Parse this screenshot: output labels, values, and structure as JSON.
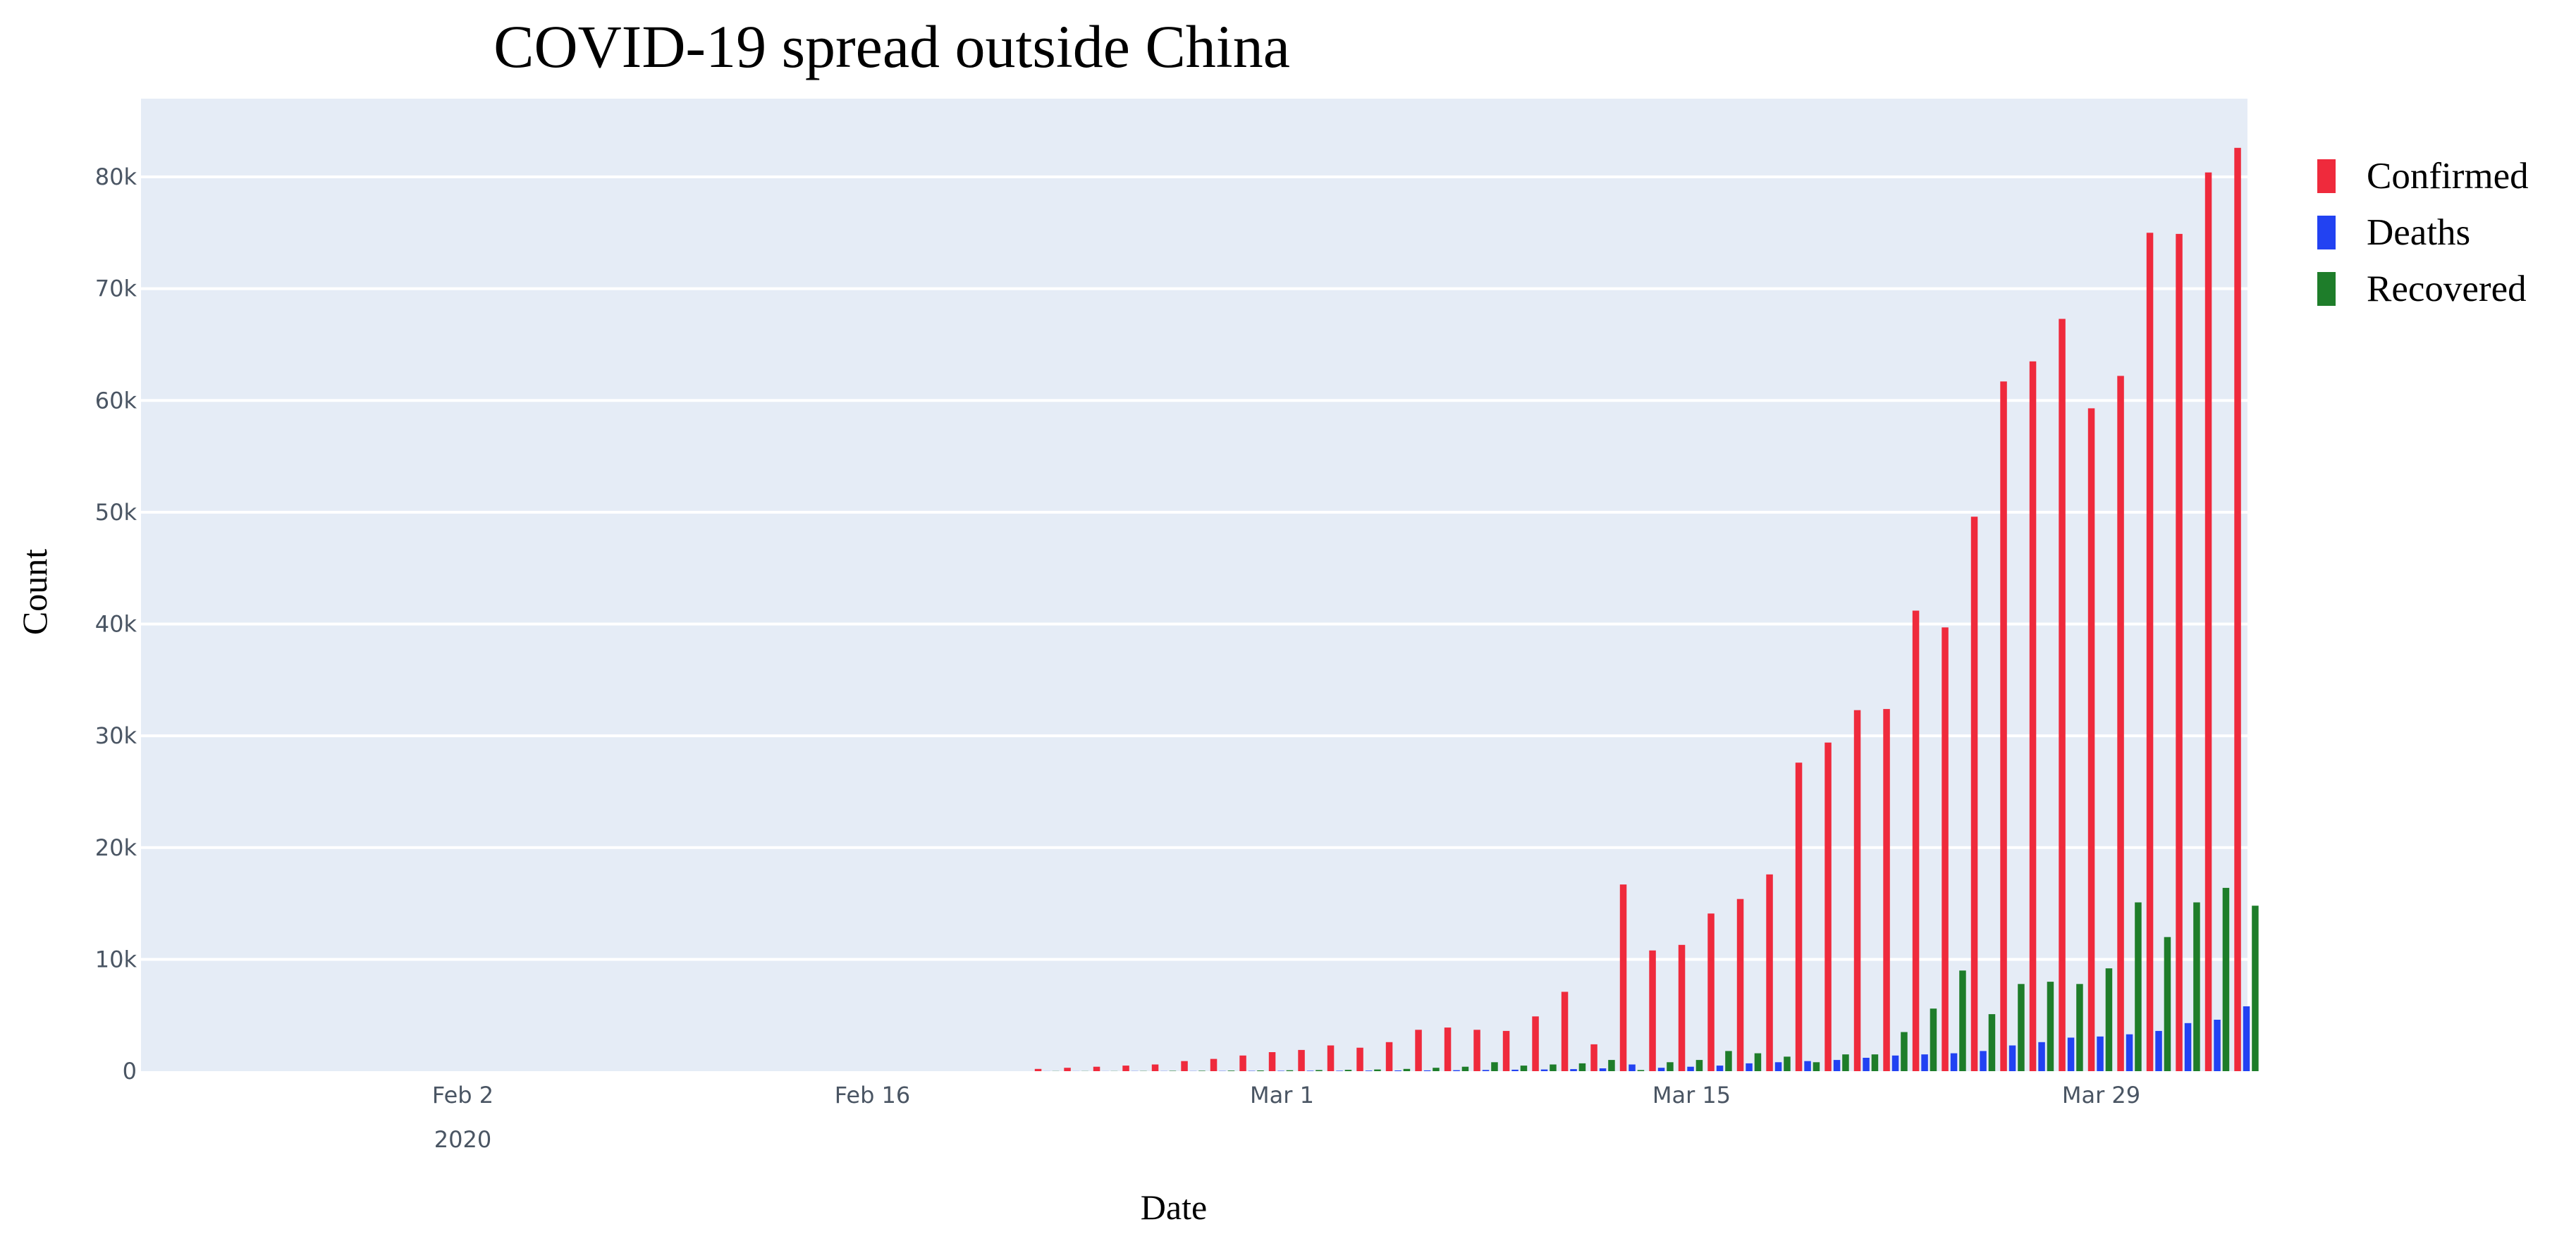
{
  "chart_data": {
    "type": "bar",
    "title": "COVID-19 spread outside China",
    "xlabel": "Date",
    "ylabel": "Count",
    "x_range": [
      "2020-01-22",
      "2020-04-03"
    ],
    "ylim": [
      0,
      87000
    ],
    "grid": true,
    "plot_background": "#e5ecf6",
    "legend_position": "top-right",
    "x_ticks": [
      {
        "date": "2020-02-02",
        "label": "Feb 2",
        "sublabel": "2020"
      },
      {
        "date": "2020-02-16",
        "label": "Feb 16",
        "sublabel": ""
      },
      {
        "date": "2020-03-01",
        "label": "Mar 1",
        "sublabel": ""
      },
      {
        "date": "2020-03-15",
        "label": "Mar 15",
        "sublabel": ""
      },
      {
        "date": "2020-03-29",
        "label": "Mar 29",
        "sublabel": ""
      }
    ],
    "y_ticks": [
      {
        "value": 0,
        "label": "0"
      },
      {
        "value": 10000,
        "label": "10k"
      },
      {
        "value": 20000,
        "label": "20k"
      },
      {
        "value": 30000,
        "label": "30k"
      },
      {
        "value": 40000,
        "label": "40k"
      },
      {
        "value": 50000,
        "label": "50k"
      },
      {
        "value": 60000,
        "label": "60k"
      },
      {
        "value": 70000,
        "label": "70k"
      },
      {
        "value": 80000,
        "label": "80k"
      }
    ],
    "dates": [
      "2020-02-22",
      "2020-02-23",
      "2020-02-24",
      "2020-02-25",
      "2020-02-26",
      "2020-02-27",
      "2020-02-28",
      "2020-02-29",
      "2020-03-01",
      "2020-03-02",
      "2020-03-03",
      "2020-03-04",
      "2020-03-05",
      "2020-03-06",
      "2020-03-07",
      "2020-03-08",
      "2020-03-09",
      "2020-03-10",
      "2020-03-11",
      "2020-03-12",
      "2020-03-13",
      "2020-03-14",
      "2020-03-15",
      "2020-03-16",
      "2020-03-17",
      "2020-03-18",
      "2020-03-19",
      "2020-03-20",
      "2020-03-21",
      "2020-03-22",
      "2020-03-23",
      "2020-03-24",
      "2020-03-25",
      "2020-03-26",
      "2020-03-27",
      "2020-03-28",
      "2020-03-29",
      "2020-03-30",
      "2020-03-31",
      "2020-04-01",
      "2020-04-02",
      "2020-04-03"
    ],
    "series": [
      {
        "name": "Confirmed",
        "color": "#ef2a3c",
        "values": [
          200,
          300,
          400,
          500,
          600,
          900,
          1100,
          1400,
          1700,
          1900,
          2300,
          2100,
          2600,
          3700,
          3900,
          3700,
          3600,
          4900,
          7100,
          2400,
          16700,
          10800,
          11300,
          14100,
          15400,
          17600,
          27600,
          29400,
          32300,
          32400,
          41200,
          39700,
          49600,
          61700,
          63500,
          67300,
          59300,
          62200,
          75000,
          74900,
          80400,
          82600
        ]
      },
      {
        "name": "Deaths",
        "color": "#2242f2",
        "values": [
          5,
          6,
          8,
          10,
          12,
          15,
          20,
          25,
          30,
          35,
          40,
          50,
          60,
          70,
          90,
          110,
          130,
          150,
          180,
          250,
          600,
          300,
          400,
          500,
          700,
          800,
          900,
          1000,
          1200,
          1400,
          1500,
          1600,
          1800,
          2300,
          2600,
          3000,
          3100,
          3300,
          3600,
          4300,
          4600,
          5800
        ]
      },
      {
        "name": "Recovered",
        "color": "#1e7d2a",
        "values": [
          10,
          12,
          15,
          20,
          30,
          40,
          50,
          60,
          80,
          100,
          120,
          150,
          200,
          300,
          400,
          800,
          500,
          600,
          700,
          1000,
          100,
          800,
          1000,
          1800,
          1600,
          1300,
          800,
          1500,
          1500,
          3500,
          5600,
          9000,
          5100,
          7800,
          8000,
          7800,
          9200,
          15100,
          12000,
          15100,
          16400,
          14800
        ]
      }
    ]
  }
}
